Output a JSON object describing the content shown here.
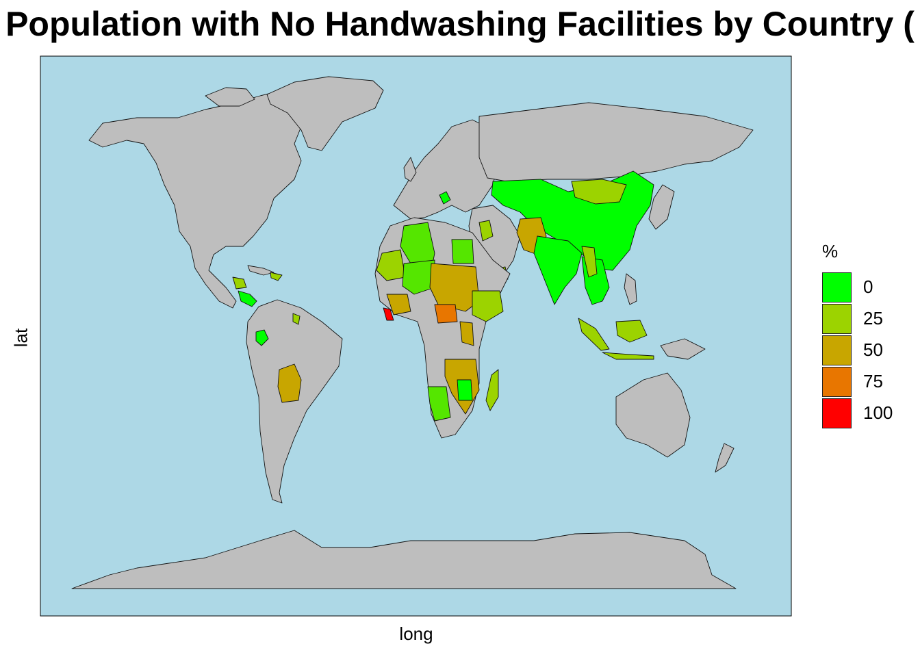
{
  "title": "Population with No Handwashing Facilities by Country (",
  "xlabel": "long",
  "ylabel": "lat",
  "legend": {
    "title": "%",
    "items": [
      {
        "label": "0",
        "color": "#00ff00"
      },
      {
        "label": "25",
        "color": "#9cd300"
      },
      {
        "label": "50",
        "color": "#c8a600"
      },
      {
        "label": "75",
        "color": "#e87600"
      },
      {
        "label": "100",
        "color": "#ff0000"
      }
    ]
  },
  "colors": {
    "ocean": "#add8e6",
    "land_no_data": "#bebebe",
    "border": "#000000"
  }
}
